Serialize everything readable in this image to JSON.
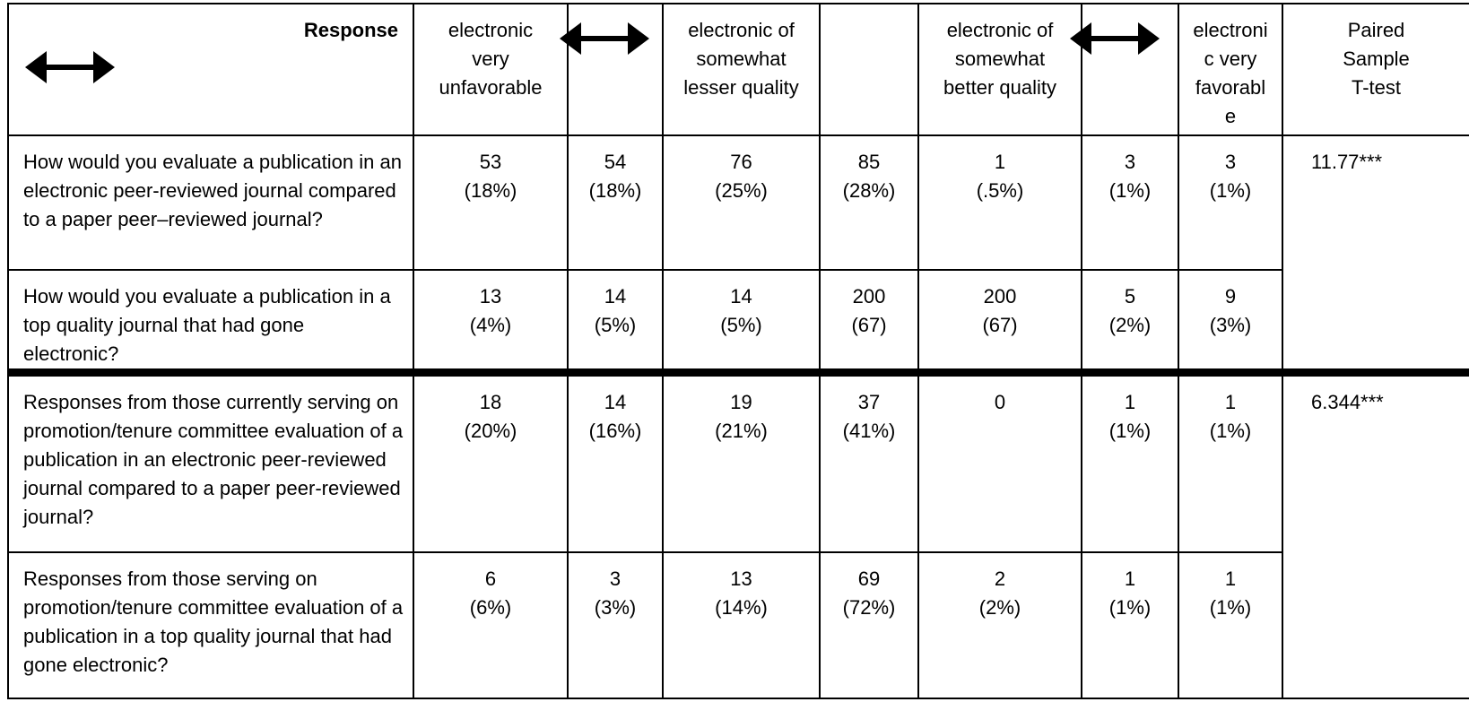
{
  "header": {
    "response_label": "Response",
    "col1": "electronic\nvery\nunfavorable",
    "col3": "electronic of\nsomewhat\nlesser quality",
    "col5": "electronic of\nsomewhat\nbetter quality",
    "col7": "electroni\nc very\nfavorabl\ne",
    "col8": "Paired\nSample\nT-test",
    "arrow_icon": "double-headed-arrow-icon"
  },
  "rows": [
    {
      "question": "How would you evaluate a publication in an electronic peer-reviewed journal compared to a paper peer–reviewed journal?",
      "cells": [
        "53\n(18%)",
        "54\n(18%)",
        "76\n(25%)",
        "85\n(28%)",
        "1\n(.5%)",
        "3\n(1%)",
        "3\n(1%)"
      ],
      "ttest": "11.77***"
    },
    {
      "question": "How would you evaluate a publication in a top quality journal that had gone electronic?",
      "cells": [
        "13\n(4%)",
        "14\n(5%)",
        "14\n(5%)",
        "200\n(67)",
        "200\n(67)",
        "5\n(2%)",
        "9\n(3%)"
      ]
    },
    {
      "question": "Responses from those currently serving on promotion/tenure committee evaluation of a publication in an electronic peer-reviewed journal compared to a paper peer-reviewed journal?",
      "cells": [
        "18\n(20%)",
        "14\n(16%)",
        "19\n(21%)",
        "37\n(41%)",
        "0",
        "1\n(1%)",
        "1\n(1%)"
      ],
      "ttest": "6.344***"
    },
    {
      "question": "Responses from those serving on promotion/tenure committee evaluation of a publication in a top quality journal that had gone electronic?",
      "cells": [
        "6\n(6%)",
        "3\n(3%)",
        "13\n(14%)",
        "69\n(72%)",
        "2\n(2%)",
        "1\n(1%)",
        "1\n(1%)"
      ]
    }
  ]
}
